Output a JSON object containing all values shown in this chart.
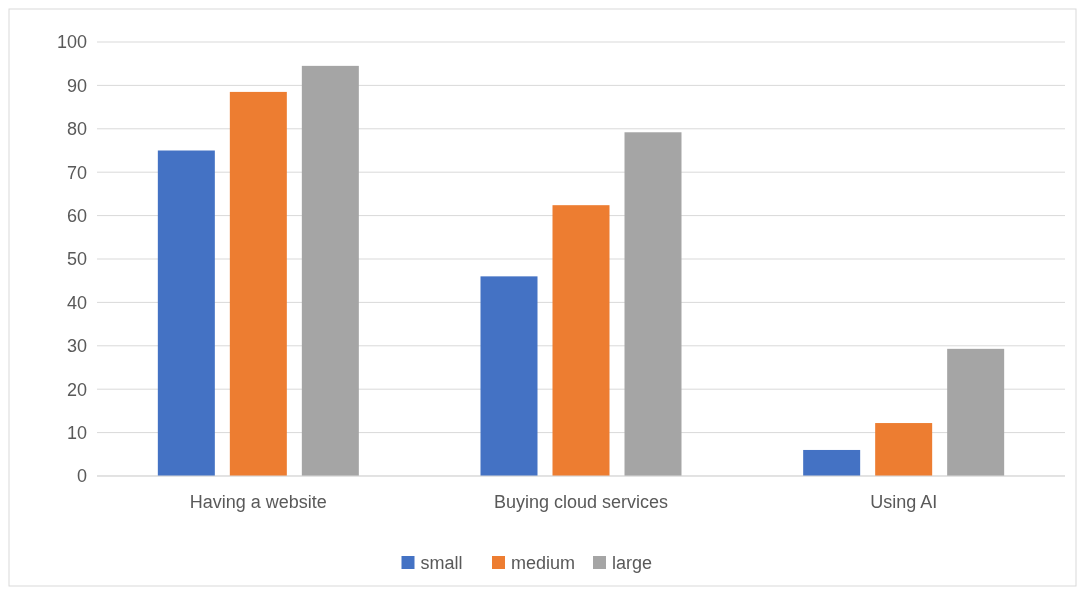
{
  "chart_data": {
    "type": "bar",
    "categories": [
      "Having a website",
      "Buying cloud services",
      "Using AI"
    ],
    "series": [
      {
        "name": "small",
        "color": "#4472c4",
        "values": [
          75,
          46,
          6
        ]
      },
      {
        "name": "medium",
        "color": "#ed7d31",
        "values": [
          88.5,
          62.4,
          12.2
        ]
      },
      {
        "name": "large",
        "color": "#a5a5a5",
        "values": [
          94.5,
          79.2,
          29.3
        ]
      }
    ],
    "ylim": [
      0,
      100
    ],
    "yticks": [
      0,
      10,
      20,
      30,
      40,
      50,
      60,
      70,
      80,
      90,
      100
    ],
    "grid": "y",
    "legend": "bottom"
  }
}
